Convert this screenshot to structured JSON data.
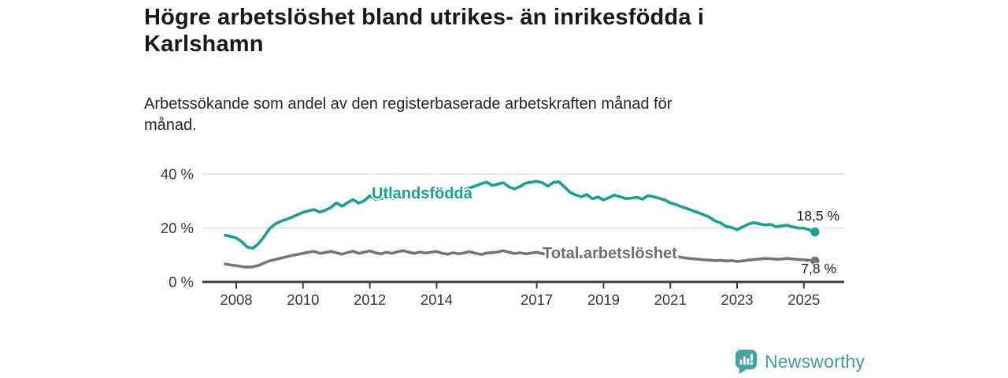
{
  "header": {
    "title_line1": "Högre arbetslöshet bland utrikes- än inrikesfödda i",
    "title_line2": "Karlshamn",
    "subtitle_line1": "Arbetssökande som andel av den registerbaserade arbetskraften månad för",
    "subtitle_line2": "månad."
  },
  "chart_data": {
    "type": "line",
    "title": "Högre arbetslöshet bland utrikes- än inrikesfödda i Karlshamn",
    "subtitle": "Arbetssökande som andel av den registerbaserade arbetskraften månad för månad.",
    "x_start": 2007.6667,
    "x_step_years": 0.1666667,
    "x_ticks": [
      2008,
      2010,
      2012,
      2014,
      2017,
      2019,
      2021,
      2023,
      2025
    ],
    "y_ticks": [
      {
        "value": 0,
        "label": "0 %"
      },
      {
        "value": 20,
        "label": "20 %"
      },
      {
        "value": 40,
        "label": "40 %"
      }
    ],
    "ylim": [
      0,
      43
    ],
    "xlim": [
      2007.6,
      2025.9
    ],
    "grid": "horizontal",
    "legend_position": "inline-labels",
    "axis_color": "#3d3d3d",
    "grid_color": "#d9d9d9",
    "tick_label_color": "#383838",
    "series": [
      {
        "id": "utlandsfodda",
        "name": "Utlandsfödda",
        "color": "#17a192",
        "end_label": "18,5 %",
        "end_value": 18.5,
        "values": [
          17.3,
          16.9,
          16.3,
          14.9,
          12.9,
          12.5,
          14.2,
          16.8,
          19.8,
          21.5,
          22.5,
          23.2,
          24.0,
          24.9,
          25.8,
          26.4,
          26.8,
          25.9,
          26.6,
          27.6,
          29.3,
          28.1,
          29.4,
          30.5,
          29.2,
          30.1,
          31.9,
          30.7,
          30.9,
          31.5,
          30.8,
          31.4,
          31.7,
          31.2,
          31.9,
          32.5,
          31.8,
          32.6,
          33.4,
          32.8,
          33.1,
          32.5,
          33.3,
          34.2,
          34.9,
          35.6,
          36.4,
          37.0,
          35.8,
          36.3,
          36.8,
          35.2,
          34.5,
          35.4,
          36.6,
          37.0,
          37.3,
          36.8,
          35.5,
          36.9,
          37.1,
          35.2,
          33.2,
          32.2,
          31.6,
          32.4,
          30.8,
          31.5,
          30.4,
          31.3,
          32.2,
          31.6,
          30.9,
          31.1,
          31.4,
          30.7,
          32.0,
          31.6,
          31.0,
          30.4,
          29.3,
          28.7,
          27.9,
          27.2,
          26.4,
          25.7,
          24.9,
          24.0,
          22.7,
          21.9,
          20.6,
          20.2,
          19.4,
          20.4,
          21.4,
          22.0,
          21.5,
          21.1,
          21.3,
          20.5,
          20.8,
          21.0,
          20.4,
          20.0,
          19.9,
          19.3,
          18.5
        ]
      },
      {
        "id": "total",
        "name": "Total arbetslöshet",
        "color": "#757575",
        "end_label": "7,8 %",
        "end_value": 7.8,
        "values": [
          6.6,
          6.3,
          6.0,
          5.7,
          5.5,
          5.6,
          6.1,
          7.0,
          7.8,
          8.3,
          8.8,
          9.3,
          9.8,
          10.2,
          10.6,
          11.0,
          11.3,
          10.6,
          10.9,
          11.3,
          10.8,
          10.3,
          10.9,
          11.4,
          10.6,
          11.0,
          11.5,
          10.8,
          10.4,
          11.0,
          10.6,
          11.2,
          11.6,
          11.0,
          10.6,
          11.1,
          10.7,
          11.0,
          11.3,
          10.6,
          10.3,
          10.8,
          10.4,
          10.8,
          11.2,
          10.6,
          10.2,
          10.7,
          10.9,
          11.1,
          11.6,
          11.0,
          10.5,
          10.8,
          10.4,
          10.7,
          11.0,
          10.5,
          10.1,
          10.3,
          9.9,
          10.2,
          10.0,
          9.6,
          9.3,
          9.6,
          9.2,
          9.5,
          9.5,
          9.2,
          9.0,
          9.2,
          9.4,
          9.6,
          10.0,
          10.4,
          10.8,
          10.5,
          10.2,
          10.0,
          9.7,
          9.4,
          9.1,
          8.8,
          8.6,
          8.4,
          8.2,
          8.1,
          7.9,
          8.0,
          7.8,
          7.9,
          7.6,
          7.8,
          8.1,
          8.3,
          8.5,
          8.7,
          8.6,
          8.4,
          8.5,
          8.7,
          8.5,
          8.3,
          8.2,
          8.0,
          7.8
        ]
      }
    ]
  },
  "footer": {
    "brand": "Newsworthy",
    "brand_color": "#3da09a",
    "logo_icon": "bar-chart-speech-bubble-icon"
  }
}
